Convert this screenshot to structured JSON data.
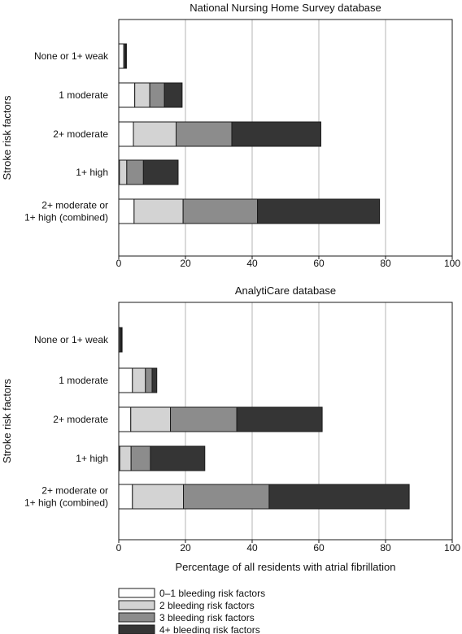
{
  "colors": {
    "seg0": "#ffffff",
    "seg1": "#d3d3d3",
    "seg2": "#8c8c8c",
    "seg3": "#353535",
    "grid": "#b4b4b4",
    "stroke": "#1a1a1a"
  },
  "legend": {
    "items": [
      "0–1 bleeding risk factors",
      "2 bleeding risk factors",
      "3 bleeding risk factors",
      "4+ bleeding risk factors"
    ]
  },
  "chart_data": [
    {
      "type": "bar",
      "orientation": "horizontal",
      "stacked": true,
      "title": "National Nursing Home Survey database",
      "ylabel": "Stroke risk factors",
      "xlabel": "",
      "xlim": [
        0,
        100
      ],
      "xticks": [
        0,
        20,
        40,
        60,
        80,
        100
      ],
      "grid": true,
      "categories": [
        [
          "None or 1+ weak"
        ],
        [
          "1 moderate"
        ],
        [
          "2+ moderate"
        ],
        [
          "1+ high"
        ],
        [
          "2+ moderate or",
          "1+ high (combined)"
        ]
      ],
      "series": [
        {
          "name": "0–1 bleeding risk factors",
          "values": [
            1.5,
            4.8,
            4.4,
            0.2,
            4.6
          ]
        },
        {
          "name": "2 bleeding risk factors",
          "values": [
            0.3,
            4.5,
            12.8,
            2.2,
            14.7
          ]
        },
        {
          "name": "3 bleeding risk factors",
          "values": [
            0.3,
            4.4,
            16.7,
            5.0,
            22.3
          ]
        },
        {
          "name": "4+ bleeding risk factors",
          "values": [
            0.2,
            5.3,
            26.7,
            10.4,
            36.6
          ]
        }
      ]
    },
    {
      "type": "bar",
      "orientation": "horizontal",
      "stacked": true,
      "title": "AnalytiCare database",
      "ylabel": "Stroke risk factors",
      "xlabel": "Percentage of all residents with atrial fibrillation",
      "xlim": [
        0,
        100
      ],
      "xticks": [
        0,
        20,
        40,
        60,
        80,
        100
      ],
      "grid": true,
      "categories": [
        [
          "None or 1+ weak"
        ],
        [
          "1 moderate"
        ],
        [
          "2+ moderate"
        ],
        [
          "1+ high"
        ],
        [
          "2+ moderate or",
          "1+ high (combined)"
        ]
      ],
      "series": [
        {
          "name": "0–1 bleeding risk factors",
          "values": [
            0.3,
            4.1,
            3.6,
            0.3,
            4.1
          ]
        },
        {
          "name": "2 bleeding risk factors",
          "values": [
            0.3,
            3.9,
            11.9,
            3.4,
            15.3
          ]
        },
        {
          "name": "3 bleeding risk factors",
          "values": [
            0.2,
            2.0,
            19.9,
            5.8,
            25.7
          ]
        },
        {
          "name": "4+ bleeding risk factors",
          "values": [
            0.2,
            1.4,
            25.6,
            16.3,
            42.0
          ]
        }
      ]
    }
  ]
}
